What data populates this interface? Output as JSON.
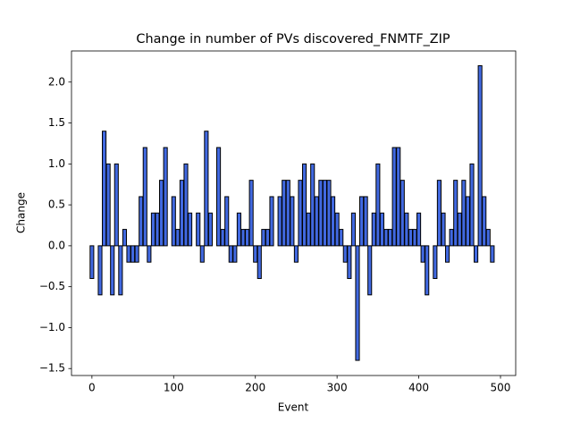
{
  "chart_data": {
    "type": "bar",
    "title": "Change in number of PVs discovered_FNMTF_ZIP",
    "xlabel": "Event",
    "ylabel": "Change",
    "x": [
      0,
      5,
      10,
      15,
      20,
      25,
      30,
      35,
      40,
      45,
      50,
      55,
      60,
      65,
      70,
      75,
      80,
      85,
      90,
      95,
      100,
      105,
      110,
      115,
      120,
      125,
      130,
      135,
      140,
      145,
      150,
      155,
      160,
      165,
      170,
      175,
      180,
      185,
      190,
      195,
      200,
      205,
      210,
      215,
      220,
      225,
      230,
      235,
      240,
      245,
      250,
      255,
      260,
      265,
      270,
      275,
      280,
      285,
      290,
      295,
      300,
      305,
      310,
      315,
      320,
      325,
      330,
      335,
      340,
      345,
      350,
      355,
      360,
      365,
      370,
      375,
      380,
      385,
      390,
      395,
      400,
      405,
      410,
      415,
      420,
      425,
      430,
      435,
      440,
      445,
      450,
      455,
      460,
      465,
      470,
      475,
      480,
      485,
      490
    ],
    "values": [
      -0.4,
      0,
      -0.6,
      1.4,
      1.0,
      -0.6,
      1.0,
      -0.6,
      0.2,
      -0.2,
      -0.2,
      -0.2,
      0.6,
      1.2,
      -0.2,
      0.4,
      0.4,
      0.8,
      1.2,
      0,
      0.6,
      0.2,
      0.8,
      1.0,
      0.4,
      0,
      0.4,
      -0.2,
      1.4,
      0.4,
      0,
      1.2,
      0.2,
      0.6,
      -0.2,
      -0.2,
      0.4,
      0.2,
      0.2,
      0.8,
      -0.2,
      -0.4,
      0.2,
      0.2,
      0.6,
      0,
      0.6,
      0.8,
      0.8,
      0.6,
      -0.2,
      0.8,
      1.0,
      0.4,
      1.0,
      0.6,
      0.8,
      0.8,
      0.8,
      0.6,
      0.4,
      0.2,
      -0.2,
      -0.4,
      0.4,
      -1.4,
      0.6,
      0.6,
      -0.6,
      0.4,
      1.0,
      0.4,
      0.2,
      0.2,
      1.2,
      1.2,
      0.8,
      0.4,
      0.2,
      0.2,
      0.4,
      -0.2,
      -0.6,
      0,
      -0.4,
      0.8,
      0.4,
      -0.2,
      0.2,
      0.8,
      0.4,
      0.8,
      0.6,
      1.0,
      -0.2,
      2.2,
      0.6,
      0.2,
      -0.2
    ],
    "color": "#4169e1",
    "edgecolor": "#000000",
    "xlim": [
      -25,
      518.6
    ],
    "xticks": [
      0,
      100,
      200,
      300,
      400,
      500
    ],
    "ylim": [
      -1.585,
      2.38
    ],
    "yticks": [
      {
        "value": -1.5,
        "label": "−1.5"
      },
      {
        "value": -1.0,
        "label": "−1.0"
      },
      {
        "value": -0.5,
        "label": "−0.5"
      },
      {
        "value": 0,
        "label": "0.0"
      },
      {
        "value": 0.5,
        "label": "0.5"
      },
      {
        "value": 1.0,
        "label": "1.0"
      },
      {
        "value": 1.5,
        "label": "1.5"
      },
      {
        "value": 2.0,
        "label": "2.0"
      }
    ],
    "grid": false
  }
}
